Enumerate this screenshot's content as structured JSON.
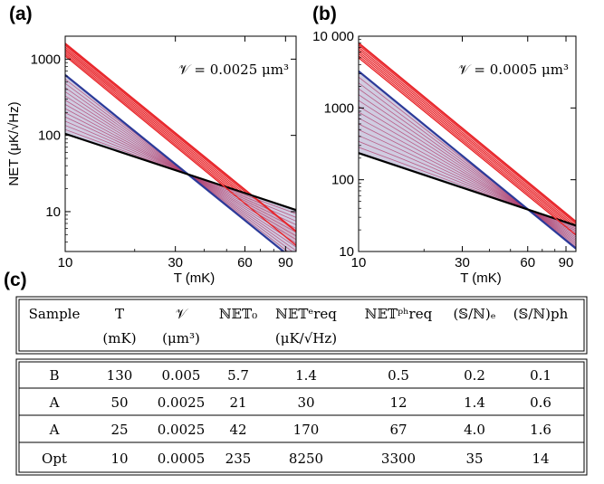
{
  "panels": {
    "a": "(a)",
    "b": "(b)",
    "c": "(c)"
  },
  "chart_data": [
    {
      "type": "line",
      "panel": "(a)",
      "annotation": "𝒱 = 0.0025 μm³",
      "ylabel": "NET (μK/√Hz)",
      "xlabel": "T (mK)",
      "xscale": "log",
      "yscale": "log",
      "xlim": [
        10,
        100
      ],
      "ylim": [
        3,
        2000
      ],
      "xticks": [
        10,
        30,
        60,
        90
      ],
      "xtick_labels": [
        "10",
        "30",
        "60",
        "90"
      ],
      "yticks": [
        10,
        100,
        1000
      ],
      "ytick_labels": [
        "10",
        "100",
        "1000"
      ],
      "colors": {
        "red": "#e8252a",
        "blue": "#2b3a99",
        "black": "#000000"
      },
      "series": [
        {
          "x": [
            10,
            100
          ],
          "y": [
            1600,
            5.5
          ]
        },
        {
          "x": [
            10,
            100
          ],
          "y": [
            620,
            2.2
          ]
        },
        {
          "x": [
            10,
            100
          ],
          "y": [
            105,
            10.5
          ]
        },
        {
          "x": [
            10,
            100
          ],
          "y": [
            1100,
            3.6
          ]
        }
      ]
    },
    {
      "type": "line",
      "panel": "(b)",
      "annotation": "𝒱 = 0.0005 μm³",
      "ylabel": "",
      "xlabel": "T (mK)",
      "xscale": "log",
      "yscale": "log",
      "xlim": [
        10,
        100
      ],
      "ylim": [
        10,
        10000
      ],
      "xticks": [
        10,
        30,
        60,
        90
      ],
      "xtick_labels": [
        "10",
        "30",
        "60",
        "90"
      ],
      "yticks": [
        10,
        100,
        1000,
        10000
      ],
      "ytick_labels": [
        "10",
        "100",
        "1000",
        "10 000"
      ],
      "colors": {
        "red": "#e8252a",
        "blue": "#2b3a99",
        "black": "#000000"
      },
      "series": [
        {
          "x": [
            10,
            100
          ],
          "y": [
            8000,
            26
          ]
        },
        {
          "x": [
            10,
            100
          ],
          "y": [
            3250,
            11
          ]
        },
        {
          "x": [
            10,
            100
          ],
          "y": [
            235,
            23
          ]
        },
        {
          "x": [
            10,
            100
          ],
          "y": [
            5000,
            17
          ]
        }
      ]
    },
    {
      "type": "table",
      "panel": "(c)",
      "columns": [
        {
          "h1": "Sample",
          "h2": ""
        },
        {
          "h1": "T",
          "h2": "(mK)"
        },
        {
          "h1": "𝒱",
          "h2": "(μm³)"
        },
        {
          "h1": "ℕ𝔼𝕋₀",
          "h2": ""
        },
        {
          "h1": "ℕ𝔼𝕋ᵉreq",
          "h2": "(μK/√Hz)"
        },
        {
          "h1": "ℕ𝔼𝕋ᵖʰreq",
          "h2": ""
        },
        {
          "h1": "(𝕊/ℕ)ₑ",
          "h2": ""
        },
        {
          "h1": "(𝕊/ℕ)ph",
          "h2": ""
        }
      ],
      "rows": [
        [
          "B",
          "130",
          "0.005",
          "5.7",
          "1.4",
          "0.5",
          "0.2",
          "0.1"
        ],
        [
          "A",
          "50",
          "0.0025",
          "21",
          "30",
          "12",
          "1.4",
          "0.6"
        ],
        [
          "A",
          "25",
          "0.0025",
          "42",
          "170",
          "67",
          "4.0",
          "1.6"
        ],
        [
          "Opt",
          "10",
          "0.0005",
          "235",
          "8250",
          "3300",
          "35",
          "14"
        ]
      ]
    }
  ]
}
